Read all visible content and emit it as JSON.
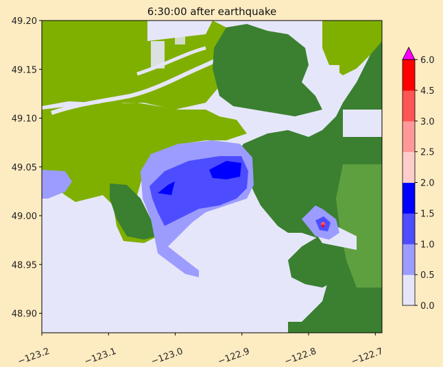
{
  "chart_data": {
    "type": "heatmap",
    "title": "6:30:00 after earthquake",
    "xlabel": "",
    "ylabel": "",
    "xlim": [
      -123.2,
      -122.69
    ],
    "ylim": [
      48.88,
      49.2
    ],
    "x_ticks": [
      "−123.2",
      "−123.1",
      "−123.0",
      "−122.9",
      "−122.8",
      "−122.7"
    ],
    "x_tick_values": [
      -123.2,
      -123.1,
      -123.0,
      -122.9,
      -122.8,
      -122.7
    ],
    "y_ticks": [
      "49.20",
      "49.15",
      "49.10",
      "49.05",
      "49.00",
      "48.95",
      "48.90"
    ],
    "y_tick_values": [
      49.2,
      49.15,
      49.1,
      49.05,
      49.0,
      48.95,
      48.9
    ],
    "colorbar": {
      "ticks": [
        "0.0",
        "0.5",
        "1.0",
        "1.5",
        "2.0",
        "2.5",
        "3.0",
        "4.5",
        "6.0"
      ],
      "tick_values": [
        0,
        0.5,
        1.0,
        1.5,
        2.0,
        2.5,
        3.0,
        4.5,
        6.0
      ],
      "bins": [
        {
          "from": 0.0,
          "to": 0.5,
          "color": "#e6e6fa"
        },
        {
          "from": 0.5,
          "to": 1.0,
          "color": "#9c9cff"
        },
        {
          "from": 1.0,
          "to": 1.5,
          "color": "#4d4dff"
        },
        {
          "from": 1.5,
          "to": 2.0,
          "color": "#0000ff"
        },
        {
          "from": 2.0,
          "to": 2.5,
          "color": "#ffcccc"
        },
        {
          "from": 2.5,
          "to": 3.0,
          "color": "#ff9999"
        },
        {
          "from": 3.0,
          "to": 4.5,
          "color": "#ff5555"
        },
        {
          "from": 4.5,
          "to": 6.0,
          "color": "#ff0000"
        }
      ],
      "extend_max_color": "#ff00ff"
    },
    "land_colors": {
      "lowland": "#7fb000",
      "upland": "#3a8030",
      "light_upland": "#5ea040"
    }
  },
  "colors": {
    "figure_background": "#fdebc2",
    "water": "#e6e6fa"
  }
}
